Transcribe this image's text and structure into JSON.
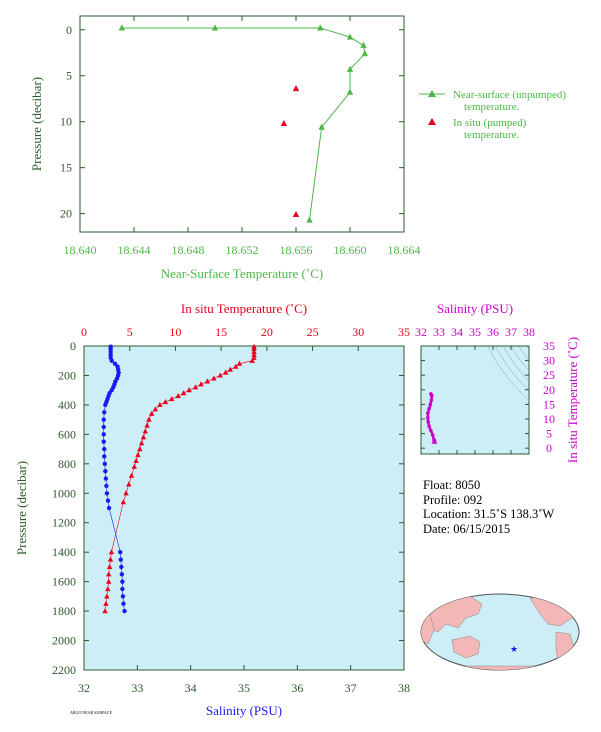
{
  "colors": {
    "green": "#4db848",
    "red": "#e8001e",
    "blue": "#1a1af0",
    "magenta": "#cc00cc",
    "axis_dark": "#2e5a2e",
    "plot_bg": "#cdeef6"
  },
  "info": {
    "float": "Float:  8050",
    "profile": "Profile:  092",
    "location": "Location:  31.5˚S  138.3˚W",
    "date": "Date:  06/15/2015"
  },
  "footer_text": "ARGO NEAR SURFACE",
  "chart_data": [
    {
      "id": "near-surface",
      "type": "scatter",
      "title": "",
      "xlabel": "Near-Surface Temperature (˚C)",
      "ylabel": "Pressure (decibar)",
      "xlim": [
        18.64,
        18.664
      ],
      "ylim": [
        22,
        -1.5
      ],
      "x_ticks": [
        "18.640",
        "18.644",
        "18.648",
        "18.652",
        "18.656",
        "18.660",
        "18.664"
      ],
      "x_tick_values": [
        18.64,
        18.644,
        18.648,
        18.652,
        18.656,
        18.66,
        18.664
      ],
      "y_ticks": [
        "0",
        "5",
        "10",
        "15",
        "20"
      ],
      "y_tick_values": [
        0,
        5,
        10,
        15,
        20
      ],
      "legend_position": "right",
      "series": [
        {
          "name": "Near-surface (unpumped) temperature.",
          "legend_lines": [
            "Near-surface (unpumped)",
            "temperature."
          ],
          "style": "line-triangle",
          "color": "#4db848",
          "x": [
            18.6431,
            18.65,
            18.6578,
            18.66,
            18.661,
            18.6611,
            18.66,
            18.66,
            18.6579,
            18.657
          ],
          "y": [
            -0.2,
            -0.2,
            -0.2,
            0.8,
            1.7,
            2.6,
            4.3,
            6.8,
            10.6,
            20.7
          ]
        },
        {
          "name": "In situ (pumped) temperature.",
          "legend_lines": [
            "In situ (pumped)",
            "temperature."
          ],
          "style": "triangle",
          "color": "#e8001e",
          "x": [
            18.656,
            18.6551,
            18.656
          ],
          "y": [
            6.4,
            10.2,
            20.1
          ]
        }
      ]
    },
    {
      "id": "profile",
      "type": "scatter",
      "title": "",
      "xlabel": "Salinity (PSU)",
      "x2label": "In situ Temperature (˚C)",
      "ylabel": "Pressure (decibar)",
      "xlim": [
        32,
        38
      ],
      "x2lim": [
        0,
        35
      ],
      "ylim": [
        2200,
        0
      ],
      "x_ticks": [
        "32",
        "33",
        "34",
        "35",
        "36",
        "37",
        "38"
      ],
      "x_tick_values": [
        32,
        33,
        34,
        35,
        36,
        37,
        38
      ],
      "x2_ticks": [
        "0",
        "5",
        "10",
        "15",
        "20",
        "25",
        "30",
        "35"
      ],
      "x2_tick_values": [
        0,
        5,
        10,
        15,
        20,
        25,
        30,
        35
      ],
      "y_ticks": [
        "0",
        "200",
        "400",
        "600",
        "800",
        "1000",
        "1200",
        "1400",
        "1600",
        "1800",
        "2000",
        "2200"
      ],
      "y_tick_values": [
        0,
        200,
        400,
        600,
        800,
        1000,
        1200,
        1400,
        1600,
        1800,
        2000,
        2200
      ],
      "series": [
        {
          "name": "Salinity",
          "axis": "x",
          "style": "dots",
          "color": "#1a1af0",
          "values": [
            [
              32.5,
              5
            ],
            [
              32.5,
              20
            ],
            [
              32.5,
              40
            ],
            [
              32.5,
              60
            ],
            [
              32.5,
              80
            ],
            [
              32.52,
              100
            ],
            [
              32.58,
              120
            ],
            [
              32.63,
              140
            ],
            [
              32.64,
              160
            ],
            [
              32.65,
              180
            ],
            [
              32.64,
              200
            ],
            [
              32.62,
              220
            ],
            [
              32.59,
              240
            ],
            [
              32.57,
              260
            ],
            [
              32.55,
              280
            ],
            [
              32.52,
              300
            ],
            [
              32.48,
              320
            ],
            [
              32.46,
              340
            ],
            [
              32.44,
              360
            ],
            [
              32.42,
              380
            ],
            [
              32.4,
              400
            ],
            [
              32.38,
              450
            ],
            [
              32.37,
              500
            ],
            [
              32.37,
              550
            ],
            [
              32.37,
              600
            ],
            [
              32.37,
              650
            ],
            [
              32.38,
              700
            ],
            [
              32.38,
              750
            ],
            [
              32.39,
              800
            ],
            [
              32.4,
              850
            ],
            [
              32.41,
              900
            ],
            [
              32.42,
              950
            ],
            [
              32.43,
              1000
            ],
            [
              32.45,
              1050
            ],
            [
              32.47,
              1100
            ],
            [
              32.68,
              1400
            ],
            [
              32.69,
              1450
            ],
            [
              32.7,
              1500
            ],
            [
              32.71,
              1550
            ],
            [
              32.72,
              1600
            ],
            [
              32.72,
              1650
            ],
            [
              32.73,
              1700
            ],
            [
              32.74,
              1750
            ],
            [
              32.76,
              1800
            ]
          ]
        },
        {
          "name": "In situ Temperature",
          "axis": "x2",
          "style": "triangles",
          "color": "#e8001e",
          "values": [
            [
              18.6,
              5
            ],
            [
              18.6,
              20
            ],
            [
              18.6,
              40
            ],
            [
              18.6,
              60
            ],
            [
              18.6,
              80
            ],
            [
              18.4,
              100
            ],
            [
              17.0,
              120
            ],
            [
              16.6,
              140
            ],
            [
              16.0,
              160
            ],
            [
              15.5,
              180
            ],
            [
              14.9,
              200
            ],
            [
              14.2,
              220
            ],
            [
              13.5,
              240
            ],
            [
              12.8,
              260
            ],
            [
              12.2,
              280
            ],
            [
              11.5,
              300
            ],
            [
              10.9,
              320
            ],
            [
              10.3,
              340
            ],
            [
              9.6,
              360
            ],
            [
              8.9,
              380
            ],
            [
              8.3,
              400
            ],
            [
              7.8,
              430
            ],
            [
              7.4,
              460
            ],
            [
              7.1,
              500
            ],
            [
              6.9,
              540
            ],
            [
              6.7,
              580
            ],
            [
              6.5,
              620
            ],
            [
              6.3,
              660
            ],
            [
              6.1,
              700
            ],
            [
              5.9,
              740
            ],
            [
              5.7,
              780
            ],
            [
              5.5,
              820
            ],
            [
              5.2,
              880
            ],
            [
              4.9,
              940
            ],
            [
              4.6,
              1000
            ],
            [
              4.3,
              1060
            ],
            [
              3.0,
              1400
            ],
            [
              2.9,
              1450
            ],
            [
              2.8,
              1500
            ],
            [
              2.7,
              1550
            ],
            [
              2.7,
              1600
            ],
            [
              2.6,
              1650
            ],
            [
              2.5,
              1700
            ],
            [
              2.4,
              1750
            ],
            [
              2.3,
              1800
            ]
          ]
        }
      ]
    },
    {
      "id": "ts-diagram",
      "type": "scatter",
      "title": "",
      "xlabel": "Salinity (PSU)",
      "ylabel": "In situ Temperature (˚C)",
      "xlim": [
        32,
        38
      ],
      "ylim": [
        -2,
        35
      ],
      "x_ticks": [
        "32",
        "33",
        "34",
        "35",
        "36",
        "37",
        "38"
      ],
      "x_tick_values": [
        32,
        33,
        34,
        35,
        36,
        37,
        38
      ],
      "y_ticks": [
        "0",
        "5",
        "10",
        "15",
        "20",
        "25",
        "30",
        "35"
      ],
      "y_tick_values": [
        0,
        5,
        10,
        15,
        20,
        25,
        30,
        35
      ],
      "series": [
        {
          "name": "T-S profile",
          "color": "#cc00cc",
          "values": [
            [
              32.75,
              2.3
            ],
            [
              32.74,
              2.6
            ],
            [
              32.72,
              2.9
            ],
            [
              32.65,
              4.5
            ],
            [
              32.55,
              6.0
            ],
            [
              32.45,
              7.5
            ],
            [
              32.4,
              9.0
            ],
            [
              32.38,
              10.5
            ],
            [
              32.38,
              12.0
            ],
            [
              32.45,
              13.5
            ],
            [
              32.52,
              15.0
            ],
            [
              32.58,
              16.5
            ],
            [
              32.6,
              18.0
            ],
            [
              32.55,
              18.6
            ]
          ]
        }
      ]
    }
  ]
}
